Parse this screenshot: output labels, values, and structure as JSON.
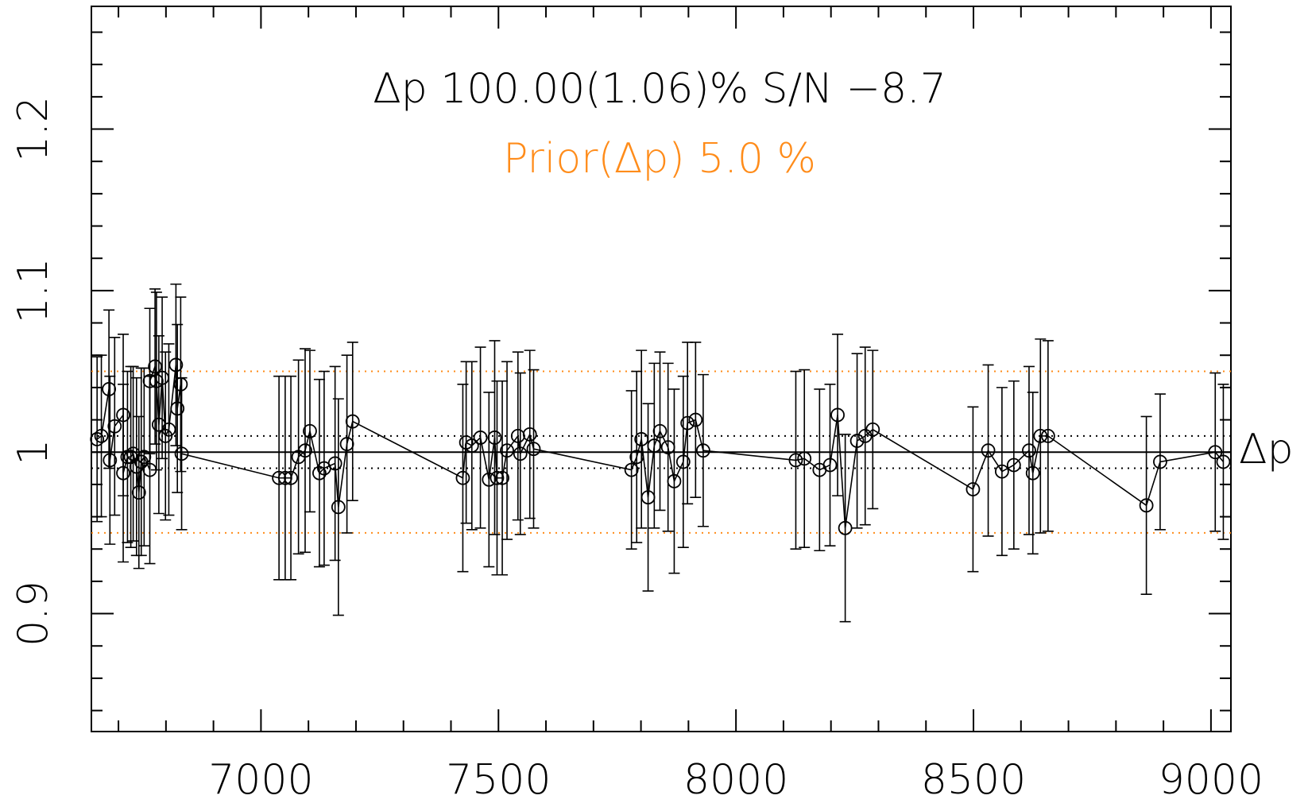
{
  "chart_data": {
    "type": "errorbar",
    "annotations": [
      {
        "text": "Δp 100.00(1.06)% S/N −8.7",
        "color": "#000000"
      },
      {
        "text": "Prior(Δp) 5.0 %",
        "color": "#ff8c1a"
      }
    ],
    "right_label": "Δp",
    "x": [
      6655,
      6664,
      6680,
      6682,
      6692,
      6710,
      6710,
      6719,
      6726,
      6731,
      6738,
      6743,
      6748,
      6754,
      6766,
      6766,
      6777,
      6780,
      6785,
      6792,
      6799,
      6806,
      6821,
      6824,
      6831,
      6833,
      7038,
      7051,
      7063,
      7079,
      7093,
      7103,
      7123,
      7133,
      7156,
      7163,
      7181,
      7193,
      7425,
      7432,
      7444,
      7462,
      7480,
      7492,
      7497,
      7508,
      7518,
      7541,
      7546,
      7566,
      7574,
      7780,
      7791,
      7801,
      7815,
      7828,
      7840,
      7857,
      7870,
      7889,
      7898,
      7915,
      7931,
      8126,
      8144,
      8176,
      8198,
      8214,
      8230,
      8255,
      8272,
      8288,
      8499,
      8531,
      8560,
      8585,
      8617,
      8625,
      8641,
      8657,
      8864,
      8893,
      9009,
      9026
    ],
    "values": [
      1.008,
      1.01,
      1.039,
      0.995,
      1.016,
      1.023,
      0.987,
      0.997,
      0.997,
      0.999,
      0.991,
      0.975,
      0.994,
      0.997,
      0.989,
      1.044,
      1.053,
      1.044,
      1.017,
      1.046,
      1.01,
      1.014,
      1.054,
      1.027,
      1.042,
      0.999,
      0.984,
      0.984,
      0.984,
      0.997,
      1.001,
      1.013,
      0.987,
      0.99,
      0.993,
      0.966,
      1.005,
      1.019,
      0.984,
      1.006,
      1.004,
      1.009,
      0.983,
      1.009,
      0.984,
      0.984,
      1.001,
      1.01,
      0.999,
      1.011,
      1.002,
      0.989,
      0.997,
      1.008,
      0.972,
      1.004,
      1.013,
      1.003,
      0.982,
      0.994,
      1.018,
      1.02,
      1.001,
      0.995,
      0.996,
      0.989,
      0.992,
      1.023,
      0.953,
      1.007,
      1.01,
      1.014,
      0.977,
      1.001,
      0.988,
      0.992,
      1.001,
      0.987,
      1.01,
      1.01,
      0.967,
      0.994,
      1.0,
      0.994
    ],
    "errors": [
      0.051,
      0.05,
      0.049,
      0.052,
      0.055,
      0.05,
      0.055,
      0.053,
      0.056,
      0.054,
      0.055,
      0.047,
      0.058,
      0.055,
      0.058,
      0.045,
      0.048,
      0.055,
      0.055,
      0.05,
      0.052,
      0.053,
      0.05,
      0.052,
      0.054,
      0.047,
      0.063,
      0.063,
      0.063,
      0.06,
      0.063,
      0.05,
      0.058,
      0.06,
      0.06,
      0.067,
      0.055,
      0.049,
      0.058,
      0.05,
      0.052,
      0.056,
      0.054,
      0.06,
      0.06,
      0.06,
      0.055,
      0.052,
      0.05,
      0.052,
      0.049,
      0.049,
      0.053,
      0.055,
      0.058,
      0.051,
      0.049,
      0.052,
      0.057,
      0.053,
      0.05,
      0.048,
      0.047,
      0.055,
      0.055,
      0.05,
      0.05,
      0.05,
      0.058,
      0.054,
      0.055,
      0.049,
      0.051,
      0.053,
      0.052,
      0.052,
      0.052,
      0.05,
      0.06,
      0.059,
      0.055,
      0.042,
      0.049,
      0.048
    ],
    "color": "#000000",
    "reference_lines": [
      {
        "value": 1.0,
        "color": "#000000",
        "style": "solid"
      },
      {
        "value": 1.01,
        "color": "#000000",
        "style": "dotted"
      },
      {
        "value": 0.99,
        "color": "#000000",
        "style": "dotted"
      },
      {
        "value": 1.05,
        "color": "#ff8c1a",
        "style": "dotted"
      },
      {
        "value": 0.95,
        "color": "#ff8c1a",
        "style": "dotted"
      }
    ],
    "xlim": [
      6643,
      9042
    ],
    "ylim": [
      0.827,
      1.276
    ],
    "xticks": [
      7000,
      7500,
      8000,
      8500,
      9000
    ],
    "yticks": [
      0.9,
      1,
      1.1,
      1.2
    ],
    "xminorticks": [
      6700,
      6800,
      6900,
      7100,
      7200,
      7300,
      7400,
      7600,
      7700,
      7800,
      7900,
      8100,
      8200,
      8300,
      8400,
      8600,
      8700,
      8800,
      8900
    ],
    "yminorticks": [
      0.84,
      0.86,
      0.88,
      0.92,
      0.94,
      0.96,
      0.98,
      1.02,
      1.04,
      1.06,
      1.08,
      1.12,
      1.14,
      1.16,
      1.18,
      1.22,
      1.24,
      1.26
    ]
  }
}
